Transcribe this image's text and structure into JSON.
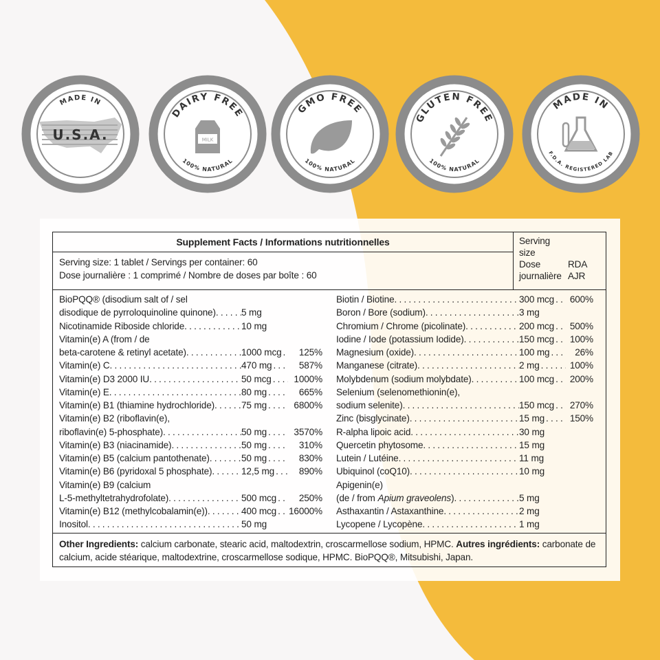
{
  "badges": [
    {
      "top": "MADE IN",
      "center": "U.S.A."
    },
    {
      "top": "DAIRY FREE",
      "bottom": "100% NATURAL",
      "icon_label": "MILK"
    },
    {
      "top": "GMO FREE",
      "bottom": "100% NATURAL"
    },
    {
      "top": "GLUTEN FREE",
      "bottom": "100% NATURAL"
    },
    {
      "top": "MADE IN",
      "bottom": "F.D.A. REGISTERED LAB"
    }
  ],
  "table": {
    "title": "Supplement Facts / Informations nutritionnelles",
    "serving_lines": [
      "Serving size: 1 tablet / Servings per container: 60",
      "Dose journalière : 1 comprimé / Nombre de doses par boîte : 60"
    ],
    "col_serving": "Serving size",
    "col_dose": "Dose journalière",
    "col_rda": "RDA",
    "col_ajr": "AJR",
    "left_lines": [
      {
        "name": "BioPQQ® (disodium salt of / sel"
      },
      {
        "name": "disodique de pyrroloquinoline quinone)",
        "amount": "5 mg"
      },
      {
        "name": "Nicotinamide Riboside chloride",
        "amount": "10 mg"
      },
      {
        "name": "Vitamin(e) A (from / de"
      },
      {
        "name": "beta-carotene & retinyl acetate)",
        "amount": "1000 mcg",
        "dv": "125%"
      },
      {
        "name": "Vitamin(e) C",
        "amount": "470 mg",
        "dv": "587%"
      },
      {
        "name": "Vitamin(e) D3 2000 IU",
        "amount": "50 mcg",
        "dv": "1000%"
      },
      {
        "name": "Vitamin(e) E",
        "amount": "80 mg",
        "dv": "665%"
      },
      {
        "name": "Vitamin(e) B1 (thiamine hydrochloride)",
        "amount": "75 mg",
        "dv": "6800%"
      },
      {
        "name": "Vitamin(e) B2 (riboflavin(e),"
      },
      {
        "name": "riboflavin(e) 5-phosphate)",
        "amount": "50 mg",
        "dv": "3570%"
      },
      {
        "name": "Vitamin(e) B3 (niacinamide)",
        "amount": "50 mg",
        "dv": "310%"
      },
      {
        "name": "Vitamin(e) B5 (calcium pantothenate)",
        "amount": "50 mg",
        "dv": "830%"
      },
      {
        "name": "Vitamin(e) B6 (pyridoxal 5 phosphate)",
        "amount": "12,5 mg",
        "dv": "890%"
      },
      {
        "name": "Vitamin(e) B9 (calcium"
      },
      {
        "name": "L-5-methyltetrahydrofolate)",
        "amount": "500 mcg",
        "dv": "250%"
      },
      {
        "name": "Vitamin(e) B12 (methylcobalamin(e))",
        "amount": "400 mcg",
        "dv": "16000%"
      },
      {
        "name": "Inositol",
        "amount": "50 mg"
      }
    ],
    "right_lines": [
      {
        "name": "Biotin / Biotine",
        "amount": "300 mcg",
        "dv": "600%"
      },
      {
        "name": "Boron / Bore (sodium)",
        "amount": "3 mg"
      },
      {
        "name": "Chromium / Chrome (picolinate)",
        "amount": "200 mcg",
        "dv": "500%"
      },
      {
        "name": "Iodine / Iode (potassium Iodide)",
        "amount": "150 mcg",
        "dv": "100%"
      },
      {
        "name": "Magnesium (oxide)",
        "amount": "100 mg",
        "dv": "26%"
      },
      {
        "name": "Manganese (citrate)",
        "amount": "2 mg",
        "dv": "100%"
      },
      {
        "name": "Molybdenum (sodium molybdate)",
        "amount": "100 mcg",
        "dv": "200%"
      },
      {
        "name": "Selenium (selenomethionin(e),"
      },
      {
        "name": "sodium selenite)",
        "amount": "150 mcg",
        "dv": "270%"
      },
      {
        "name": "Zinc (bisglycinate)",
        "amount": "15 mg",
        "dv": "150%"
      },
      {
        "name": "R-alpha lipoic acid",
        "amount": "30 mg"
      },
      {
        "name": "Quercetin phytosome",
        "amount": "15 mg"
      },
      {
        "name": "Lutein / Lutéine",
        "amount": "11 mg"
      },
      {
        "name": "Ubiquinol (coQ10)",
        "amount": "10 mg"
      },
      {
        "name": "Apigenin(e)"
      },
      {
        "name": "(de / from",
        "name_italic": "Apium graveolens",
        "name_end": ")",
        "amount": "5 mg"
      },
      {
        "name": "Asthaxantin / Astaxanthine",
        "amount": "2 mg"
      },
      {
        "name": "Lycopene / Lycopène",
        "amount": "1 mg"
      }
    ],
    "other_label": "Other Ingredients:",
    "other_text": "calcium carbonate, stearic acid, maltodextrin, croscarmellose sodium, HPMC.",
    "autres_label": "Autres ingrédients:",
    "autres_text": "carbonate de calcium, acide stéarique, maltodextrine, croscarmellose sodique, HPMC. BioPQQ®, Mitsubishi, Japan."
  }
}
